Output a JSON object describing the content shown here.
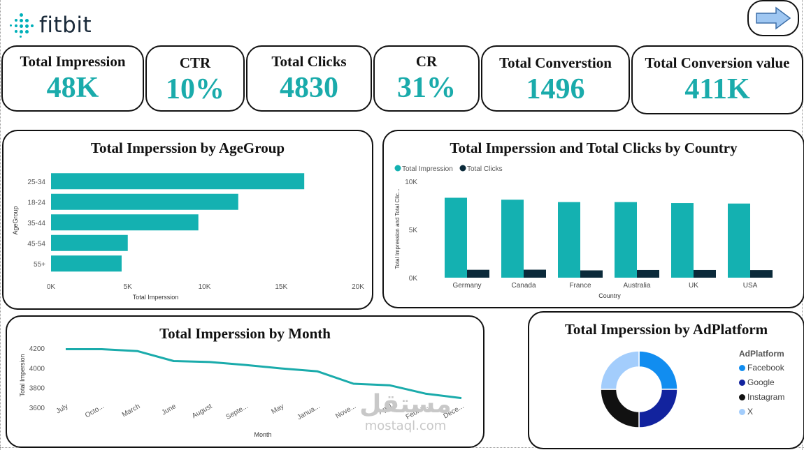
{
  "brand": {
    "name": "fitbit",
    "accent": "#00b0b9"
  },
  "nav": {
    "icon": "arrow-right-icon"
  },
  "kpis": [
    {
      "title": "Total Impression",
      "value": "48K"
    },
    {
      "title": "CTR",
      "value": "10%"
    },
    {
      "title": "Total Clicks",
      "value": "4830"
    },
    {
      "title": "CR",
      "value": "31%"
    },
    {
      "title": "Total Converstion",
      "value": "1496"
    },
    {
      "title": "Total Conversion value",
      "value": "411K"
    }
  ],
  "colors": {
    "teal": "#14b1b1",
    "dark": "#0b2a3a",
    "line": "#1aabab",
    "facebook": "#118df0",
    "google": "#12239e",
    "instagram": "#111111",
    "x": "#a3cdfc"
  },
  "chart_data": [
    {
      "type": "bar",
      "title": "Total Imperssion by AgeGroup",
      "orientation": "horizontal",
      "categories": [
        "25-34",
        "18-24",
        "35-44",
        "45-54",
        "55+"
      ],
      "values": [
        16500,
        12200,
        9600,
        5000,
        4600
      ],
      "xlabel": "Total Imperssion",
      "ylabel": "AgeGroup",
      "xlim": [
        0,
        20000
      ],
      "xticks": [
        "0K",
        "5K",
        "10K",
        "15K",
        "20K"
      ]
    },
    {
      "type": "bar",
      "title": "Total Imperssion and Total Clicks by Country",
      "categories": [
        "Germany",
        "Canada",
        "France",
        "Australia",
        "UK",
        "USA"
      ],
      "series": [
        {
          "name": "Total Impression",
          "values": [
            8300,
            8100,
            7850,
            7850,
            7750,
            7700
          ]
        },
        {
          "name": "Total Clicks",
          "values": [
            820,
            830,
            760,
            800,
            800,
            790
          ]
        }
      ],
      "xlabel": "Country",
      "ylabel": "Total Impression and Total Clic...",
      "ylim": [
        0,
        10000
      ],
      "yticks": [
        "0K",
        "5K",
        "10K"
      ],
      "legend": "top-left"
    },
    {
      "type": "line",
      "title": "Total Imperssion by Month",
      "categories": [
        "July",
        "Octo...",
        "March",
        "June",
        "August",
        "Septe...",
        "May",
        "Janua...",
        "Nove...",
        "April",
        "Febru...",
        "Dece..."
      ],
      "values": [
        4190,
        4190,
        4170,
        4070,
        4060,
        4030,
        3995,
        3965,
        3840,
        3825,
        3740,
        3695
      ],
      "xlabel": "Month",
      "ylabel": "Total Impersion",
      "ylim": [
        3600,
        4250
      ],
      "yticks": [
        "3600",
        "3800",
        "4000",
        "4200"
      ]
    },
    {
      "type": "pie",
      "variant": "donut",
      "title": "Total Imperssion by AdPlatform",
      "categories": [
        "Facebook",
        "Google",
        "Instagram",
        "X"
      ],
      "values": [
        25,
        25,
        25,
        25
      ],
      "legend_title": "AdPlatform",
      "legend": "right"
    }
  ],
  "watermark": {
    "arabic": "مستقل",
    "latin": "mostaql.com"
  }
}
